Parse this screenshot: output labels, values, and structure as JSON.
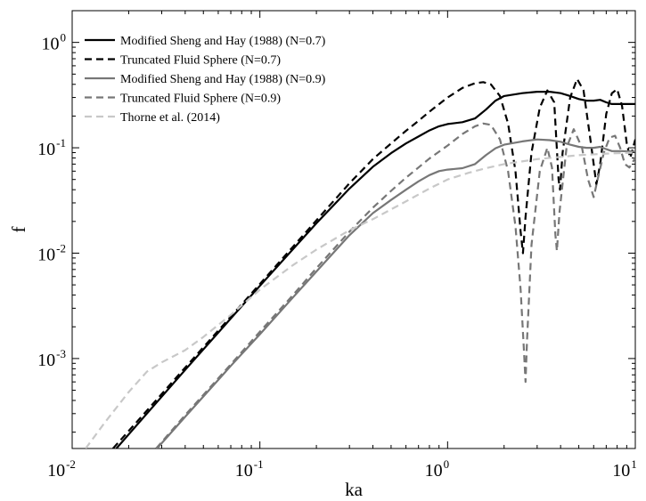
{
  "chart_data": {
    "type": "line",
    "xlabel": "ka",
    "ylabel": "f",
    "xscale": "log",
    "yscale": "log",
    "xlim": [
      0.01,
      10
    ],
    "ylim": [
      0.00014,
      2
    ],
    "xticks": [
      {
        "value": 0.01,
        "base": "10",
        "exp": "-2"
      },
      {
        "value": 0.1,
        "base": "10",
        "exp": "-1"
      },
      {
        "value": 1,
        "base": "10",
        "exp": "0"
      },
      {
        "value": 10,
        "base": "10",
        "exp": "1"
      }
    ],
    "yticks": [
      {
        "value": 0.001,
        "base": "10",
        "exp": "-3"
      },
      {
        "value": 0.01,
        "base": "10",
        "exp": "-2"
      },
      {
        "value": 0.1,
        "base": "10",
        "exp": "-1"
      },
      {
        "value": 1,
        "base": "10",
        "exp": "0"
      }
    ],
    "grid": false,
    "legend_position": "top-left",
    "series": [
      {
        "name": "Modified Sheng and Hay (1988) (N=0.7)",
        "color": "#000000",
        "dash": "solid",
        "width": 2.2,
        "points": [
          [
            0.0172,
            0.00014
          ],
          [
            0.025,
            0.0003
          ],
          [
            0.04,
            0.00078
          ],
          [
            0.07,
            0.0024
          ],
          [
            0.1,
            0.0049
          ],
          [
            0.15,
            0.0109
          ],
          [
            0.2,
            0.0192
          ],
          [
            0.3,
            0.041
          ],
          [
            0.4,
            0.066
          ],
          [
            0.5,
            0.089
          ],
          [
            0.6,
            0.11
          ],
          [
            0.7,
            0.128
          ],
          [
            0.8,
            0.146
          ],
          [
            0.9,
            0.16
          ],
          [
            1.0,
            0.168
          ],
          [
            1.2,
            0.175
          ],
          [
            1.4,
            0.19
          ],
          [
            1.6,
            0.23
          ],
          [
            1.8,
            0.28
          ],
          [
            2.0,
            0.31
          ],
          [
            2.5,
            0.33
          ],
          [
            3.0,
            0.34
          ],
          [
            3.5,
            0.34
          ],
          [
            4.0,
            0.33
          ],
          [
            4.5,
            0.31
          ],
          [
            5.0,
            0.29
          ],
          [
            5.5,
            0.28
          ],
          [
            6.0,
            0.28
          ],
          [
            6.5,
            0.285
          ],
          [
            7.0,
            0.27
          ],
          [
            7.5,
            0.26
          ],
          [
            8.5,
            0.26
          ],
          [
            10,
            0.26
          ]
        ]
      },
      {
        "name": "Truncated Fluid Sphere (N=0.7)",
        "color": "#000000",
        "dash": "8,5",
        "width": 2.2,
        "points": [
          [
            0.0165,
            0.00014
          ],
          [
            0.025,
            0.00032
          ],
          [
            0.04,
            0.00082
          ],
          [
            0.07,
            0.0025
          ],
          [
            0.1,
            0.0051
          ],
          [
            0.15,
            0.0115
          ],
          [
            0.2,
            0.0205
          ],
          [
            0.3,
            0.046
          ],
          [
            0.4,
            0.078
          ],
          [
            0.5,
            0.11
          ],
          [
            0.6,
            0.145
          ],
          [
            0.7,
            0.18
          ],
          [
            0.8,
            0.22
          ],
          [
            1.0,
            0.3
          ],
          [
            1.2,
            0.37
          ],
          [
            1.4,
            0.41
          ],
          [
            1.55,
            0.42
          ],
          [
            1.7,
            0.4
          ],
          [
            1.9,
            0.31
          ],
          [
            2.1,
            0.17
          ],
          [
            2.3,
            0.06
          ],
          [
            2.45,
            0.016
          ],
          [
            2.52,
            0.01
          ],
          [
            2.6,
            0.022
          ],
          [
            2.8,
            0.09
          ],
          [
            3.1,
            0.24
          ],
          [
            3.4,
            0.35
          ],
          [
            3.7,
            0.27
          ],
          [
            3.9,
            0.05
          ],
          [
            3.97,
            0.04
          ],
          [
            4.1,
            0.09
          ],
          [
            4.5,
            0.3
          ],
          [
            4.9,
            0.45
          ],
          [
            5.3,
            0.35
          ],
          [
            5.8,
            0.11
          ],
          [
            6.2,
            0.045
          ],
          [
            6.5,
            0.07
          ],
          [
            7.0,
            0.21
          ],
          [
            7.5,
            0.33
          ],
          [
            8.0,
            0.36
          ],
          [
            8.5,
            0.25
          ],
          [
            9.0,
            0.11
          ],
          [
            9.4,
            0.08
          ],
          [
            10,
            0.12
          ]
        ]
      },
      {
        "name": "Modified Sheng and Hay (1988) (N=0.9)",
        "color": "#777777",
        "dash": "solid",
        "width": 2.2,
        "points": [
          [
            0.0283,
            0.00014
          ],
          [
            0.04,
            0.00028
          ],
          [
            0.07,
            0.00085
          ],
          [
            0.1,
            0.0017
          ],
          [
            0.15,
            0.0038
          ],
          [
            0.2,
            0.0067
          ],
          [
            0.3,
            0.0148
          ],
          [
            0.4,
            0.024
          ],
          [
            0.5,
            0.032
          ],
          [
            0.6,
            0.04
          ],
          [
            0.7,
            0.048
          ],
          [
            0.8,
            0.055
          ],
          [
            0.9,
            0.06
          ],
          [
            1.0,
            0.062
          ],
          [
            1.2,
            0.064
          ],
          [
            1.4,
            0.07
          ],
          [
            1.6,
            0.085
          ],
          [
            1.8,
            0.099
          ],
          [
            2.0,
            0.107
          ],
          [
            2.5,
            0.115
          ],
          [
            3.0,
            0.12
          ],
          [
            3.5,
            0.118
          ],
          [
            4.0,
            0.114
          ],
          [
            4.5,
            0.107
          ],
          [
            5.0,
            0.102
          ],
          [
            5.5,
            0.1
          ],
          [
            6.0,
            0.1
          ],
          [
            6.5,
            0.102
          ],
          [
            7.0,
            0.097
          ],
          [
            7.5,
            0.093
          ],
          [
            8.5,
            0.093
          ],
          [
            10,
            0.092
          ]
        ]
      },
      {
        "name": "Truncated Fluid Sphere (N=0.9)",
        "color": "#777777",
        "dash": "8,5",
        "width": 2.2,
        "points": [
          [
            0.028,
            0.00014
          ],
          [
            0.04,
            0.00029
          ],
          [
            0.07,
            0.00088
          ],
          [
            0.1,
            0.0018
          ],
          [
            0.15,
            0.004
          ],
          [
            0.2,
            0.0072
          ],
          [
            0.3,
            0.016
          ],
          [
            0.4,
            0.027
          ],
          [
            0.5,
            0.039
          ],
          [
            0.6,
            0.052
          ],
          [
            0.7,
            0.065
          ],
          [
            0.8,
            0.079
          ],
          [
            1.0,
            0.105
          ],
          [
            1.2,
            0.135
          ],
          [
            1.4,
            0.16
          ],
          [
            1.55,
            0.17
          ],
          [
            1.7,
            0.165
          ],
          [
            1.9,
            0.12
          ],
          [
            2.1,
            0.06
          ],
          [
            2.3,
            0.018
          ],
          [
            2.45,
            0.0045
          ],
          [
            2.55,
            0.0012
          ],
          [
            2.6,
            0.0006
          ],
          [
            2.65,
            0.0015
          ],
          [
            2.8,
            0.012
          ],
          [
            3.1,
            0.06
          ],
          [
            3.4,
            0.1
          ],
          [
            3.6,
            0.065
          ],
          [
            3.75,
            0.015
          ],
          [
            3.82,
            0.0105
          ],
          [
            3.95,
            0.025
          ],
          [
            4.3,
            0.1
          ],
          [
            4.7,
            0.15
          ],
          [
            5.2,
            0.1
          ],
          [
            5.6,
            0.05
          ],
          [
            6.0,
            0.034
          ],
          [
            6.3,
            0.05
          ],
          [
            6.8,
            0.09
          ],
          [
            7.3,
            0.125
          ],
          [
            7.8,
            0.13
          ],
          [
            8.3,
            0.1
          ],
          [
            8.8,
            0.07
          ],
          [
            9.3,
            0.065
          ],
          [
            10,
            0.08
          ]
        ]
      },
      {
        "name": "Thorne et al. (2014)",
        "color": "#c8c8c8",
        "dash": "8,5",
        "width": 2.2,
        "points": [
          [
            0.0118,
            0.00014
          ],
          [
            0.015,
            0.00025
          ],
          [
            0.02,
            0.00048
          ],
          [
            0.025,
            0.00075
          ],
          [
            0.03,
            0.00092
          ],
          [
            0.04,
            0.0012
          ],
          [
            0.05,
            0.0016
          ],
          [
            0.07,
            0.0026
          ],
          [
            0.1,
            0.0045
          ],
          [
            0.15,
            0.0077
          ],
          [
            0.2,
            0.0108
          ],
          [
            0.3,
            0.0165
          ],
          [
            0.4,
            0.021
          ],
          [
            0.5,
            0.026
          ],
          [
            0.6,
            0.031
          ],
          [
            0.8,
            0.041
          ],
          [
            1.0,
            0.05
          ],
          [
            1.3,
            0.058
          ],
          [
            1.6,
            0.064
          ],
          [
            2.0,
            0.07
          ],
          [
            3.0,
            0.078
          ],
          [
            5.0,
            0.085
          ],
          [
            7.0,
            0.088
          ],
          [
            10,
            0.09
          ]
        ]
      }
    ]
  }
}
